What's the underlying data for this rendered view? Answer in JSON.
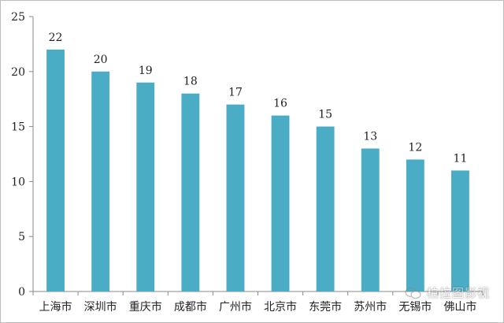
{
  "chart_data": {
    "type": "bar",
    "categories": [
      "上海市",
      "深圳市",
      "重庆市",
      "成都市",
      "广州市",
      "北京市",
      "东莞市",
      "苏州市",
      "无锡市",
      "佛山市"
    ],
    "values": [
      22,
      20,
      19,
      18,
      17,
      16,
      15,
      13,
      12,
      11
    ],
    "ylim": [
      0,
      25
    ],
    "yticks": [
      0,
      5,
      10,
      15,
      20,
      25
    ],
    "grid": false,
    "bar_color": "#4bacc6",
    "data_labels": true
  },
  "watermark": {
    "text": "柏拉图影视",
    "icon": "wechat-icon"
  }
}
